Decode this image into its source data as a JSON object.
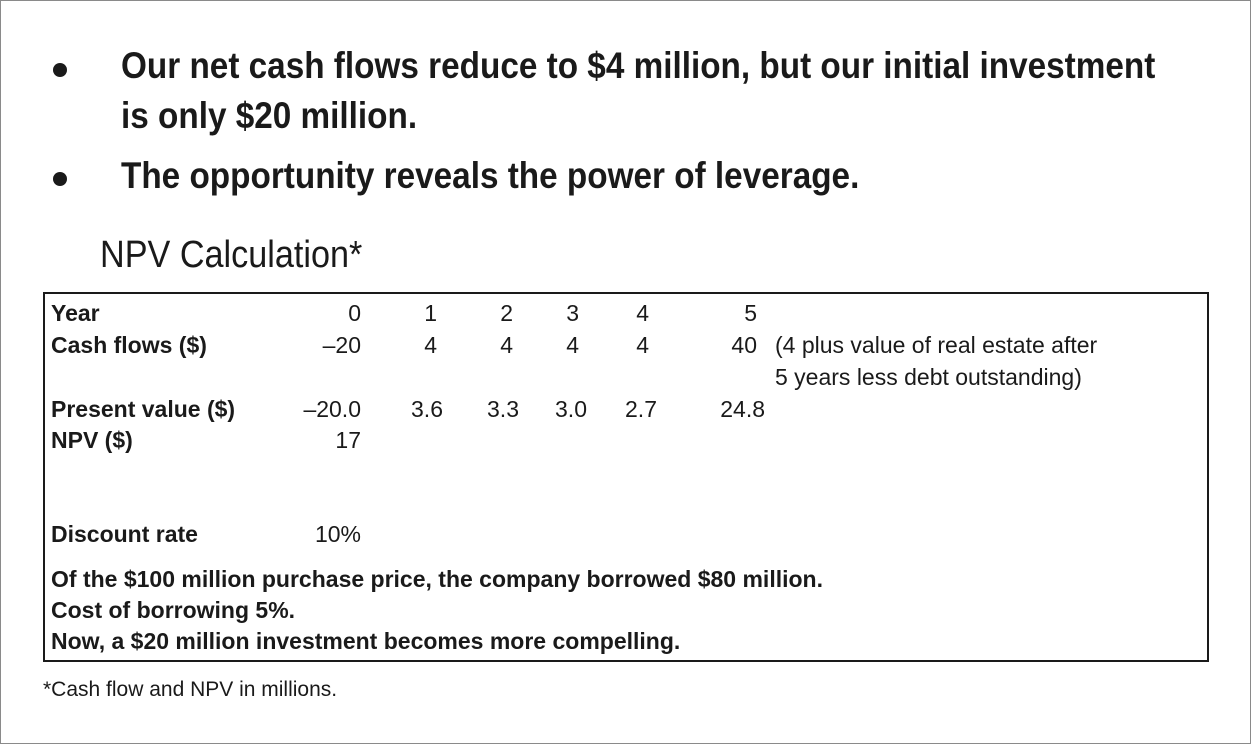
{
  "bullets": [
    {
      "lines": [
        "Our net cash flows reduce to $4 million, but our initial investment",
        "is only $20 million."
      ]
    },
    {
      "lines": [
        "The opportunity reveals the power of leverage."
      ]
    }
  ],
  "section_title": "NPV Calculation*",
  "table": {
    "rows": [
      {
        "label": "Year",
        "values": [
          "0",
          "1",
          "2",
          "3",
          "4",
          "5"
        ]
      },
      {
        "label": "Cash flows ($)",
        "values": [
          "–20",
          "4",
          "4",
          "4",
          "4",
          "40"
        ],
        "note": [
          "(4 plus value of real estate after",
          "5 years less debt outstanding)"
        ]
      },
      {
        "label": "Present value ($)",
        "values": [
          "–20.0",
          "3.6",
          "3.3",
          "3.0",
          "2.7",
          "24.8"
        ]
      },
      {
        "label": "NPV ($)",
        "values": [
          "17"
        ]
      },
      {
        "label": "Discount rate",
        "values": [
          "10%"
        ]
      }
    ],
    "statements": [
      "Of the $100 million purchase price, the company borrowed $80 million.",
      "Cost of borrowing 5%.",
      "Now, a $20 million investment becomes more compelling."
    ]
  },
  "footnote": "*Cash flow and NPV in millions."
}
